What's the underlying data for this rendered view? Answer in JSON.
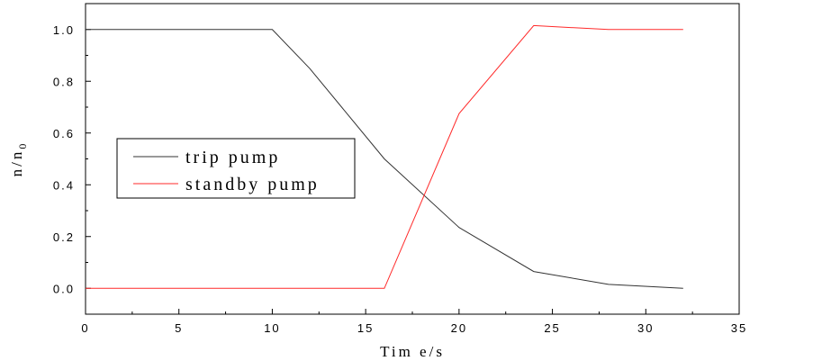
{
  "chart_data": {
    "type": "line",
    "xlabel": "Tim e/s",
    "ylabel_main": "n/n",
    "ylabel_sub": "0",
    "xlim": [
      0,
      35
    ],
    "ylim": [
      -0.1,
      1.1
    ],
    "x_ticks": [
      0,
      5,
      10,
      15,
      20,
      25,
      30,
      35
    ],
    "x_tick_labels": [
      "0",
      "5",
      "10",
      "15",
      "20",
      "25",
      "30",
      "35"
    ],
    "y_ticks": [
      0.0,
      0.2,
      0.4,
      0.6,
      0.8,
      1.0
    ],
    "y_tick_labels": [
      "0.0",
      "0.2",
      "0.4",
      "0.6",
      "0.8",
      "1.0"
    ],
    "grid": false,
    "legend_position": "center-left",
    "series": [
      {
        "name": "trip pump",
        "color": "#333333",
        "x": [
          0,
          10,
          12,
          16,
          20,
          24,
          28,
          32
        ],
        "y": [
          1.0,
          1.0,
          0.85,
          0.5,
          0.235,
          0.065,
          0.015,
          0.0
        ]
      },
      {
        "name": "standby pump",
        "color": "#ff2a2a",
        "x": [
          0,
          16,
          20,
          24,
          28,
          32
        ],
        "y": [
          0.0,
          0.0,
          0.675,
          1.015,
          1.0,
          1.0
        ]
      }
    ]
  }
}
